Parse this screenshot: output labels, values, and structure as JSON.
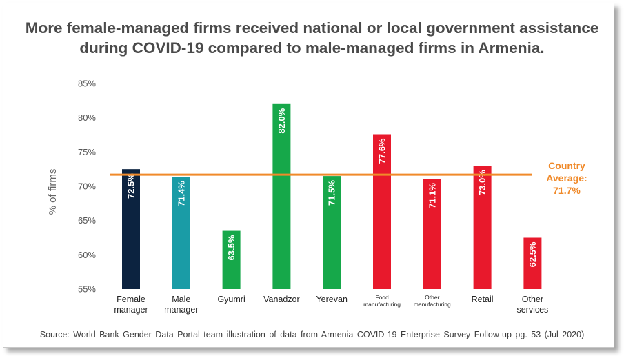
{
  "chart_data": {
    "type": "bar",
    "title": "More female-managed firms received national or local government assistance during COVID-19 compared to male-managed firms in Armenia.",
    "ylabel": "% of firms",
    "xlabel": "",
    "ylim": [
      55,
      85
    ],
    "yticks": [
      "55%",
      "60%",
      "65%",
      "70%",
      "75%",
      "80%",
      "85%"
    ],
    "ytick_values": [
      55,
      60,
      65,
      70,
      75,
      80,
      85
    ],
    "categories": [
      [
        "Female",
        "manager"
      ],
      [
        "Male",
        "manager"
      ],
      [
        "Gyumri"
      ],
      [
        "Vanadzor"
      ],
      [
        "Yerevan"
      ],
      [
        "Food",
        "manufacturing"
      ],
      [
        "Other",
        "manufacturing"
      ],
      [
        "Retail"
      ],
      [
        "Other",
        "services"
      ]
    ],
    "small_label": [
      false,
      false,
      false,
      false,
      false,
      true,
      true,
      false,
      false
    ],
    "values": [
      72.5,
      71.4,
      63.5,
      82.0,
      71.5,
      77.6,
      71.1,
      73.0,
      62.5
    ],
    "value_labels": [
      "72.5%",
      "71.4%",
      "63.5%",
      "82.0%",
      "71.5%",
      "77.6%",
      "71.1%",
      "73.0%",
      "62.5%"
    ],
    "colors": [
      "#0c2340",
      "#1a9ca6",
      "#16a84a",
      "#16a84a",
      "#16a84a",
      "#e8192c",
      "#e8192c",
      "#e8192c",
      "#e8192c"
    ],
    "reference_line": {
      "value": 71.7,
      "color": "#f08a2a",
      "label": [
        "Country",
        "Average:",
        "71.7%"
      ]
    }
  },
  "source": "Source: World Bank Gender Data Portal team illustration of data from Armenia COVID-19 Enterprise Survey Follow-up pg. 53 (Jul 2020)"
}
